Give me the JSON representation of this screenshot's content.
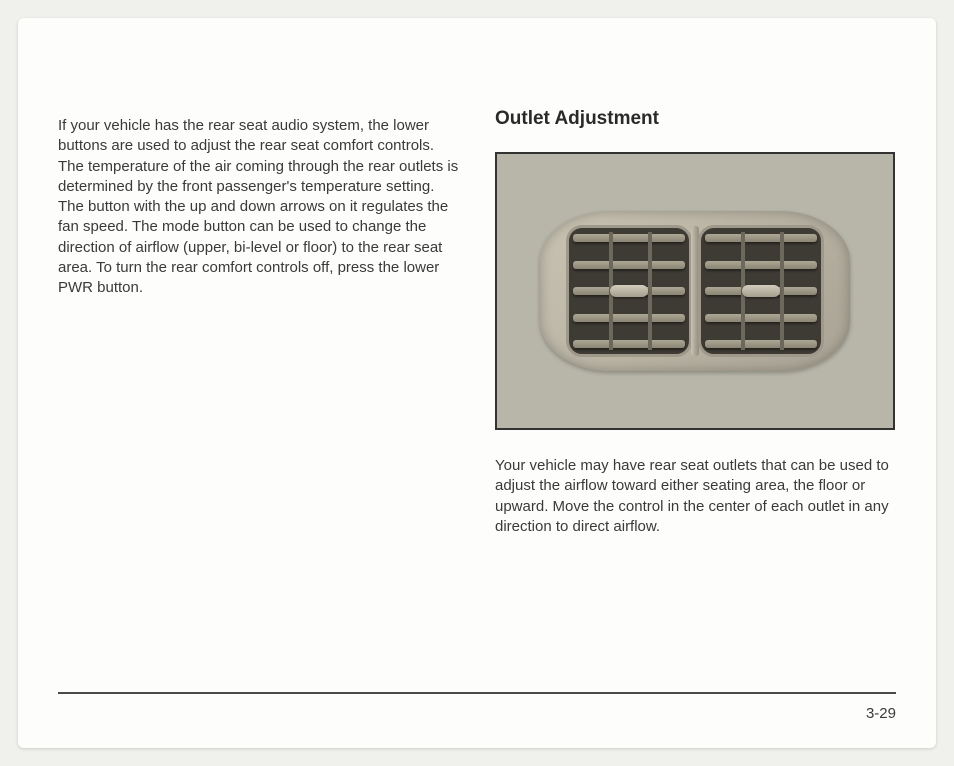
{
  "leftColumn": {
    "paragraph": "If your vehicle has the rear seat audio system, the lower buttons are used to adjust the rear seat comfort controls. The temperature of the air coming through the rear outlets is determined by the front passenger's temperature setting. The button with the up and down arrows on it regulates the fan speed. The mode button can be used to change the direction of airflow (upper, bi-level or floor) to the rear seat area. To turn the rear comfort controls off, press the lower PWR button."
  },
  "rightColumn": {
    "heading": "Outlet Adjustment",
    "paragraph": "Your vehicle may have rear seat outlets that can be used to adjust the airflow toward either seating area, the floor or upward. Move the control in the center of each outlet in any direction to direct airflow."
  },
  "pageNumber": "3-29",
  "ventPhoto": {
    "description": "Photograph of a pair of rectangular air vent outlets with horizontal slats and central adjustment knobs, set in a beige interior panel.",
    "slatCount": 5
  },
  "colors": {
    "pageBg": "#f0f0ed",
    "paperBg": "#fdfdfb",
    "text": "#3a3a3a",
    "headingText": "#2a2a2a",
    "rule": "#4a4a4a",
    "photoBorder": "#333333",
    "photoBg": "#b8b6a9",
    "ventBody": "#c8c3b2",
    "ventDark": "#3e3a34",
    "ventSlat": "#ada894"
  },
  "typography": {
    "bodyFontSize": 15,
    "headingFontSize": 19,
    "lineHeight": 1.35,
    "fontFamily": "Arial, Helvetica, sans-serif"
  }
}
